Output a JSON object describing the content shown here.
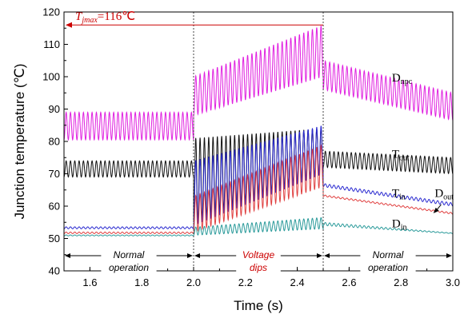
{
  "chart_data": {
    "type": "line",
    "xlabel": "Time (s)",
    "ylabel": "Junction temperature (℃)",
    "xlim": [
      1.5,
      3.0
    ],
    "ylim": [
      40,
      120
    ],
    "xticks": [
      "1.6",
      "1.8",
      "2.0",
      "2.2",
      "2.4",
      "2.6",
      "2.8",
      "3.0"
    ],
    "yticks": [
      "40",
      "50",
      "60",
      "70",
      "80",
      "90",
      "100",
      "110",
      "120"
    ],
    "grid": false,
    "series": [
      {
        "name": "D",
        "sub": "npc",
        "color": "#e020e0",
        "cycles": 30,
        "phases": [
          {
            "t0": 1.5,
            "t1": 2.0,
            "low_start": 80.5,
            "low_end": 80.5,
            "high_start": 89,
            "high_end": 89
          },
          {
            "t0": 2.0,
            "t1": 2.5,
            "low_start": 88,
            "low_end": 100,
            "high_start": 100,
            "high_end": 116
          },
          {
            "t0": 2.5,
            "t1": 3.0,
            "low_start": 96,
            "low_end": 86.5,
            "high_start": 105,
            "high_end": 95
          }
        ]
      },
      {
        "name": "T",
        "sub": "out",
        "color": "#111111",
        "cycles": 30,
        "phases": [
          {
            "t0": 1.5,
            "t1": 2.0,
            "low_start": 69,
            "low_end": 69,
            "high_start": 74,
            "high_end": 74
          },
          {
            "t0": 2.0,
            "t1": 2.5,
            "low_start": 55,
            "low_end": 70,
            "high_start": 81,
            "high_end": 84
          },
          {
            "t0": 2.5,
            "t1": 3.0,
            "low_start": 72,
            "low_end": 70,
            "high_start": 77,
            "high_end": 75
          }
        ]
      },
      {
        "name": "T",
        "sub": "in",
        "color": "#2a2ad0",
        "cycles": 30,
        "phases": [
          {
            "t0": 1.5,
            "t1": 2.0,
            "low_start": 53,
            "low_end": 53,
            "high_start": 53.6,
            "high_end": 53.6
          },
          {
            "t0": 2.0,
            "t1": 2.5,
            "low_start": 54,
            "low_end": 70,
            "high_start": 74,
            "high_end": 85
          },
          {
            "t0": 2.5,
            "t1": 3.0,
            "low_start": 66,
            "low_end": 60,
            "high_start": 67,
            "high_end": 61
          }
        ]
      },
      {
        "name": "D",
        "sub": "out",
        "color": "#e04040",
        "cycles": 30,
        "phases": [
          {
            "t0": 1.5,
            "t1": 2.0,
            "low_start": 51.5,
            "low_end": 51.5,
            "high_start": 52,
            "high_end": 52
          },
          {
            "t0": 2.0,
            "t1": 2.5,
            "low_start": 52,
            "low_end": 66,
            "high_start": 63,
            "high_end": 79
          },
          {
            "t0": 2.5,
            "t1": 3.0,
            "low_start": 63,
            "low_end": 57.5,
            "high_start": 63.5,
            "high_end": 58
          }
        ]
      },
      {
        "name": "D",
        "sub": "in",
        "color": "#2a9a9a",
        "cycles": 30,
        "phases": [
          {
            "t0": 1.5,
            "t1": 2.0,
            "low_start": 50.8,
            "low_end": 50.8,
            "high_start": 51.1,
            "high_end": 51.1
          },
          {
            "t0": 2.0,
            "t1": 2.5,
            "low_start": 51,
            "low_end": 53,
            "high_start": 53.5,
            "high_end": 56.5
          },
          {
            "t0": 2.5,
            "t1": 3.0,
            "low_start": 54,
            "low_end": 51.5,
            "high_start": 55,
            "high_end": 51.7
          }
        ]
      }
    ],
    "annotations": {
      "tjmax": {
        "prefix": "T",
        "sub": "jmax",
        "suffix": "=116℃",
        "value": 116,
        "t_start": 1.5,
        "t_end": 2.5,
        "color": "#cc0000"
      },
      "dividers": [
        2.0,
        2.5
      ],
      "phase_labels": [
        {
          "line1": "Normal",
          "line2": "operation",
          "t0": 1.5,
          "t1": 2.0,
          "color": "#000000"
        },
        {
          "line1": "Voltage",
          "line2": "dips",
          "t0": 2.0,
          "t1": 2.5,
          "color": "#cc0000"
        },
        {
          "line1": "Normal",
          "line2": "operation",
          "t0": 2.5,
          "t1": 3.0,
          "color": "#000000"
        }
      ],
      "series_labels": [
        {
          "series": 0,
          "t": 2.765,
          "y": 98.5
        },
        {
          "series": 1,
          "t": 2.765,
          "y": 75
        },
        {
          "series": 2,
          "t": 2.765,
          "y": 62.8
        },
        {
          "series": 3,
          "t": 2.93,
          "y": 62.8
        },
        {
          "series": 4,
          "t": 2.765,
          "y": 53.5
        }
      ]
    }
  }
}
